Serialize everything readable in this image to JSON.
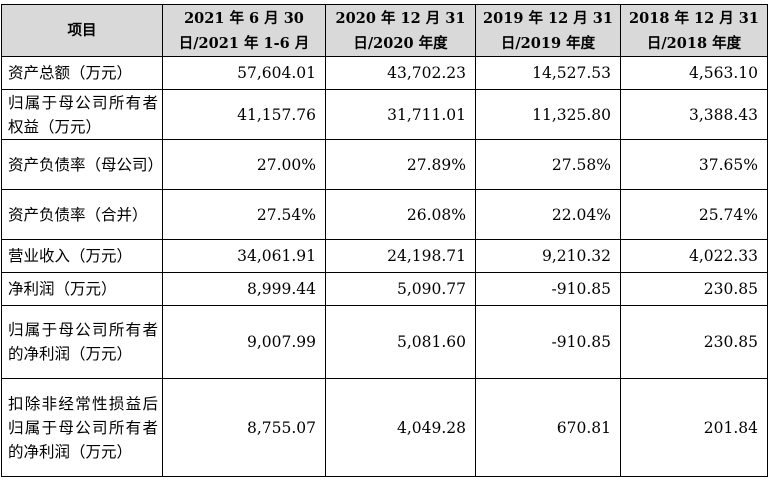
{
  "header": {
    "item": "项目",
    "col1": "2021 年 6 月 30 日/2021 年 1-6 月",
    "col2": "2020 年 12 月 31 日/2020 年度",
    "col3": "2019 年 12 月 31 日/2019 年度",
    "col4": "2018 年 12 月 31 日/2018 年度"
  },
  "rows": [
    {
      "label": "资产总额（万元）",
      "values": [
        "57,604.01",
        "43,702.23",
        "14,527.53",
        "4,563.10"
      ]
    },
    {
      "label": "归属于母公司所有者权益（万元）",
      "values": [
        "41,157.76",
        "31,711.01",
        "11,325.80",
        "3,388.43"
      ]
    },
    {
      "label": "资产负债率（母公司）",
      "values": [
        "27.00%",
        "27.89%",
        "27.58%",
        "37.65%"
      ]
    },
    {
      "label": "资产负债率（合并）",
      "values": [
        "27.54%",
        "26.08%",
        "22.04%",
        "25.74%"
      ]
    },
    {
      "label": "营业收入（万元）",
      "values": [
        "34,061.91",
        "24,198.71",
        "9,210.32",
        "4,022.33"
      ]
    },
    {
      "label": "净利润（万元）",
      "values": [
        "8,999.44",
        "5,090.77",
        "-910.85",
        "230.85"
      ]
    },
    {
      "label": "归属于母公司所有者的净利润（万元）",
      "values": [
        "9,007.99",
        "5,081.60",
        "-910.85",
        "230.85"
      ]
    },
    {
      "label": "扣除非经常性损益后归属于母公司所有者的净利润（万元）",
      "values": [
        "8,755.07",
        "4,049.28",
        "670.81",
        "201.84"
      ]
    }
  ]
}
